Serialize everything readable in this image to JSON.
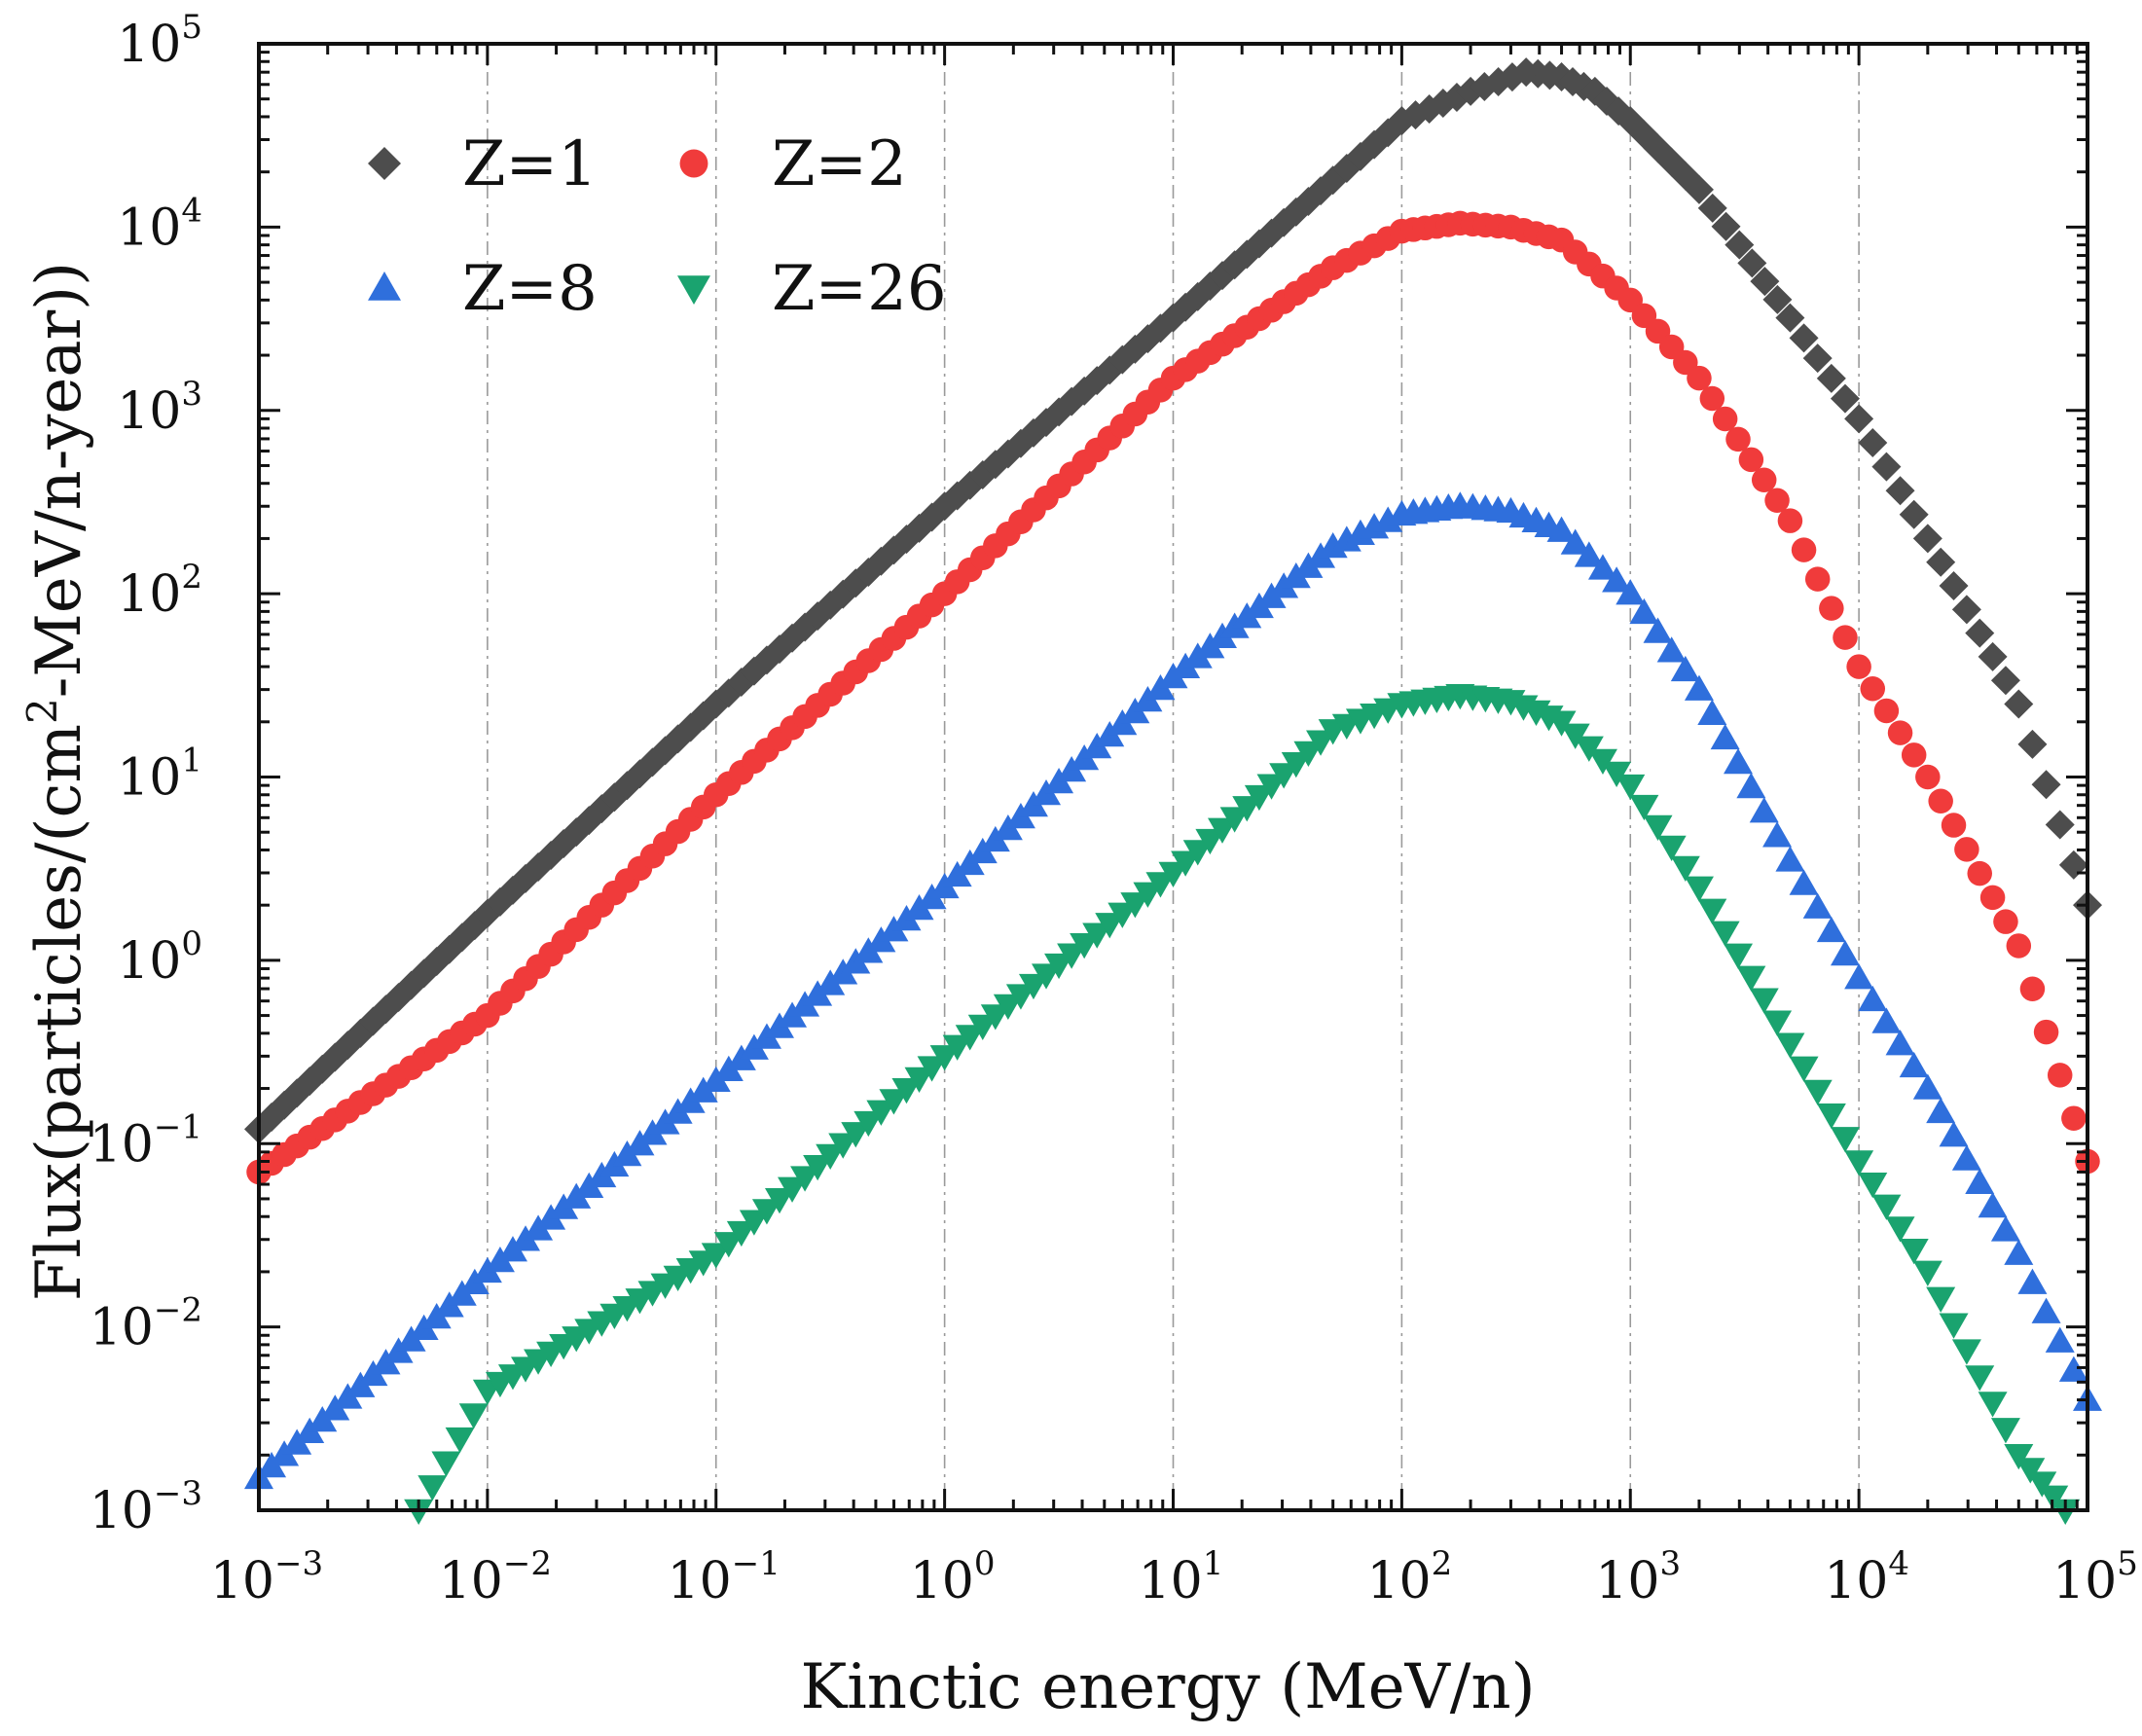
{
  "chart_data": {
    "type": "scatter",
    "title": "",
    "xlabel": "Kinctic energy (MeV/n)",
    "ylabel_parts": [
      "Flux(particles/(cm",
      "2",
      "-MeV/n-year))"
    ],
    "xscale": "log",
    "yscale": "log",
    "xlim": [
      0.001,
      100000
    ],
    "ylim": [
      0.001,
      100000
    ],
    "x_ticks": [
      {
        "base": "10",
        "exp": "−3"
      },
      {
        "base": "10",
        "exp": "−2"
      },
      {
        "base": "10",
        "exp": "−1"
      },
      {
        "base": "10",
        "exp": "0"
      },
      {
        "base": "10",
        "exp": "1"
      },
      {
        "base": "10",
        "exp": "2"
      },
      {
        "base": "10",
        "exp": "3"
      },
      {
        "base": "10",
        "exp": "4"
      },
      {
        "base": "10",
        "exp": "5"
      }
    ],
    "y_ticks": [
      {
        "base": "10",
        "exp": "−3"
      },
      {
        "base": "10",
        "exp": "−2"
      },
      {
        "base": "10",
        "exp": "−1"
      },
      {
        "base": "10",
        "exp": "0"
      },
      {
        "base": "10",
        "exp": "1"
      },
      {
        "base": "10",
        "exp": "2"
      },
      {
        "base": "10",
        "exp": "3"
      },
      {
        "base": "10",
        "exp": "4"
      },
      {
        "base": "10",
        "exp": "5"
      }
    ],
    "grid": "vertical dash-dot",
    "legend_position": "top-left",
    "series": [
      {
        "name": "Z=1",
        "marker": "diamond",
        "color": "#4d4d4d",
        "points": [
          [
            0.001,
            0.12
          ],
          [
            0.01,
            1.8
          ],
          [
            0.1,
            25
          ],
          [
            1,
            300
          ],
          [
            10,
            3200
          ],
          [
            50,
            18000
          ],
          [
            100,
            38000
          ],
          [
            200,
            55000
          ],
          [
            350,
            70000
          ],
          [
            500,
            66000
          ],
          [
            700,
            55000
          ],
          [
            1000,
            38000
          ],
          [
            2000,
            16000
          ],
          [
            3000,
            8000
          ],
          [
            5000,
            3200
          ],
          [
            10000,
            900
          ],
          [
            20000,
            200
          ],
          [
            50000,
            25
          ],
          [
            100000,
            2
          ]
        ]
      },
      {
        "name": "Z=2",
        "marker": "circle",
        "color": "#f03b3b",
        "points": [
          [
            0.001,
            0.07
          ],
          [
            0.01,
            0.5
          ],
          [
            0.1,
            8
          ],
          [
            1,
            100
          ],
          [
            10,
            1500
          ],
          [
            50,
            6000
          ],
          [
            100,
            9500
          ],
          [
            180,
            10500
          ],
          [
            300,
            10000
          ],
          [
            500,
            8500
          ],
          [
            1000,
            4000
          ],
          [
            2000,
            1500
          ],
          [
            5000,
            250
          ],
          [
            10000,
            40
          ],
          [
            20000,
            10
          ],
          [
            50000,
            1.2
          ],
          [
            100000,
            0.08
          ]
        ]
      },
      {
        "name": "Z=8",
        "marker": "triangle-up",
        "color": "#2f6fdc",
        "points": [
          [
            0.001,
            0.0015
          ],
          [
            0.01,
            0.02
          ],
          [
            0.1,
            0.22
          ],
          [
            1,
            2.5
          ],
          [
            10,
            35
          ],
          [
            50,
            180
          ],
          [
            100,
            270
          ],
          [
            180,
            300
          ],
          [
            300,
            280
          ],
          [
            500,
            220
          ],
          [
            1000,
            100
          ],
          [
            2000,
            30
          ],
          [
            5000,
            3.5
          ],
          [
            10000,
            0.8
          ],
          [
            20000,
            0.2
          ],
          [
            50000,
            0.025
          ],
          [
            100000,
            0.004
          ]
        ]
      },
      {
        "name": "Z=26",
        "marker": "triangle-down",
        "color": "#1aa36f",
        "points": [
          [
            0.005,
            0.001
          ],
          [
            0.01,
            0.0045
          ],
          [
            0.1,
            0.025
          ],
          [
            1,
            0.3
          ],
          [
            10,
            3
          ],
          [
            50,
            18
          ],
          [
            100,
            25
          ],
          [
            180,
            28
          ],
          [
            300,
            26
          ],
          [
            500,
            20
          ],
          [
            1000,
            9
          ],
          [
            2000,
            2.5
          ],
          [
            5000,
            0.35
          ],
          [
            10000,
            0.08
          ],
          [
            20000,
            0.02
          ],
          [
            50000,
            0.002
          ],
          [
            80000,
            0.001
          ]
        ]
      }
    ]
  }
}
